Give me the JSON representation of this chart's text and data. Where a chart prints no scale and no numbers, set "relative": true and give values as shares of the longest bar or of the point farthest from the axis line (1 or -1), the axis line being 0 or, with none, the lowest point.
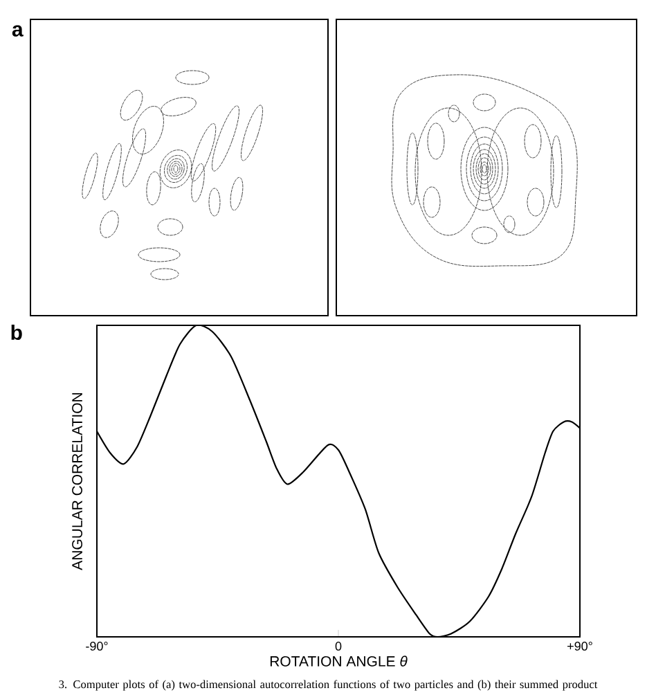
{
  "chart_data": [
    {
      "type": "other",
      "title": "a"
    },
    {
      "type": "line",
      "title": "b",
      "xlabel": "ROTATION ANGLE *θ*",
      "ylabel": "ANGULAR CORRELATION",
      "relative": true,
      "color": "#000000",
      "x": [
        -90,
        -85,
        -80,
        -75,
        -70,
        -64,
        -59,
        -53,
        -47,
        -40,
        -33,
        -27,
        -23,
        -19,
        -13,
        -4,
        0,
        4,
        10,
        15,
        22,
        29,
        34,
        37,
        42,
        49,
        56,
        61,
        66,
        72,
        77,
        80,
        84,
        87,
        90
      ],
      "values": [
        0.66,
        0.59,
        0.555,
        0.61,
        0.71,
        0.84,
        0.94,
        1.0,
        0.98,
        0.9,
        0.76,
        0.63,
        0.54,
        0.49,
        0.53,
        0.615,
        0.6,
        0.53,
        0.41,
        0.27,
        0.16,
        0.07,
        0.01,
        0,
        0.01,
        0.05,
        0.13,
        0.22,
        0.33,
        0.45,
        0.59,
        0.66,
        0.69,
        0.69,
        0.67
      ],
      "xlim": [
        -90,
        90
      ],
      "xticks": [
        {
          "value": -90,
          "label": "-90°"
        },
        0,
        {
          "value": 90,
          "label": "+90°"
        }
      ],
      "annotations": [
        "3. Computer plots of (a) two-dimensional autocorrelation functions of two particles and (b) their summed product"
      ]
    }
  ]
}
